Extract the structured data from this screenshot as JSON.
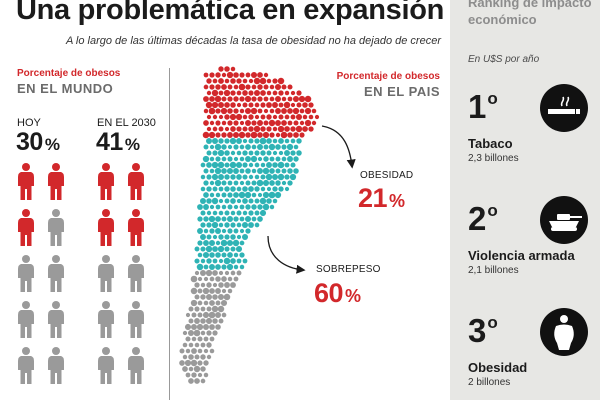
{
  "header": {
    "title": "Una problemática en expansión",
    "subtitle": "A lo largo de las últimas décadas la tasa de obesidad no ha dejado de crecer"
  },
  "world": {
    "label": "Porcentaje de obesos",
    "heading": "EN EL MUNDO",
    "columns": [
      {
        "label": "HOY",
        "percent": "30",
        "unit": "%",
        "obese_count": 3,
        "total_count": 10
      },
      {
        "label": "EN EL 2030",
        "percent": "41",
        "unit": "%",
        "obese_count": 4,
        "total_count": 10
      }
    ]
  },
  "country": {
    "label": "Porcentaje de obesos",
    "heading": "EN EL PAIS",
    "stats": [
      {
        "label": "OBESIDAD",
        "value": "21",
        "unit": "%"
      },
      {
        "label": "SOBREPESO",
        "value": "60",
        "unit": "%"
      }
    ]
  },
  "ranking": {
    "title": "Ranking de impacto económico",
    "subtitle": "En U$S por año",
    "items": [
      {
        "rank": "1",
        "suffix": "o",
        "name": "Tabaco",
        "value": "2,3 billones",
        "icon": "cigarette-icon"
      },
      {
        "rank": "2",
        "suffix": "o",
        "name": "Violencia armada",
        "value": "2,1 billones",
        "icon": "tank-icon"
      },
      {
        "rank": "3",
        "suffix": "o",
        "name": "Obesidad",
        "value": "2 billones",
        "icon": "obese-person-icon"
      }
    ]
  },
  "colors": {
    "accent_red": "#d2282b",
    "teal": "#2fb3b5",
    "gray": "#9a9a9a",
    "side_bg": "#e7e7e4"
  }
}
